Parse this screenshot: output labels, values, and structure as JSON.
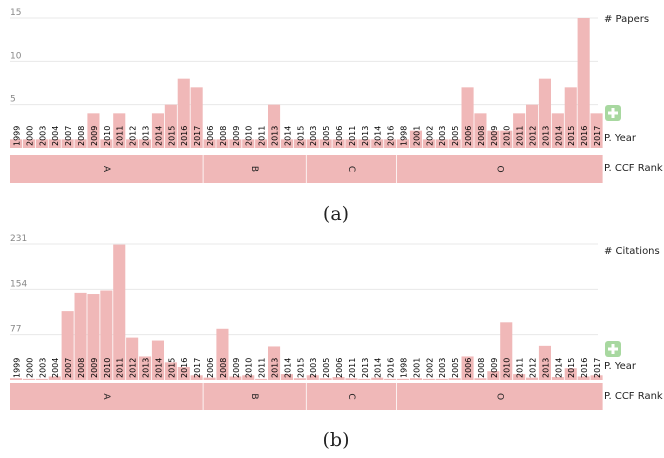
{
  "chart_data": [
    {
      "type": "bar",
      "panel_label": "(a)",
      "measure_label": "# Papers",
      "year_row_label": "P. Year",
      "rank_row_label": "P. CCF Rank",
      "yticks": [
        5,
        10,
        15
      ],
      "ylim": [
        0,
        15
      ],
      "colors": {
        "bar": "#f0b8b8",
        "band": "#f0b8b8",
        "grid": "#e8e8e8",
        "plus": "#a8d8a0"
      },
      "groups": [
        {
          "rank": "A",
          "years": [
            "1999",
            "2000",
            "2003",
            "2004",
            "2007",
            "2008",
            "2009",
            "2010",
            "2011",
            "2012",
            "2013",
            "2014",
            "2015",
            "2016",
            "2017"
          ],
          "values": [
            1,
            1,
            1,
            1,
            1,
            1,
            4,
            1,
            4,
            1,
            1,
            4,
            5,
            8,
            7
          ]
        },
        {
          "rank": "B",
          "years": [
            "2006",
            "2008",
            "2009",
            "2010",
            "2011",
            "2013",
            "2014",
            "2015"
          ],
          "values": [
            1,
            1,
            1,
            1,
            1,
            5,
            1,
            1
          ]
        },
        {
          "rank": "C",
          "years": [
            "2003",
            "2005",
            "2006",
            "2011",
            "2013",
            "2014",
            "2016"
          ],
          "values": [
            1,
            1,
            1,
            1,
            1,
            1,
            1
          ]
        },
        {
          "rank": "O",
          "years": [
            "1998",
            "2001",
            "2002",
            "2003",
            "2005",
            "2006",
            "2008",
            "2009",
            "2010",
            "2011",
            "2012",
            "2013",
            "2014",
            "2015",
            "2016",
            "2017"
          ],
          "values": [
            1,
            2,
            1,
            1,
            1,
            7,
            4,
            2,
            2,
            4,
            5,
            8,
            4,
            7,
            15,
            4
          ]
        }
      ]
    },
    {
      "type": "bar",
      "panel_label": "(b)",
      "measure_label": "# Citations",
      "year_row_label": "P. Year",
      "rank_row_label": "P. CCF Rank",
      "yticks": [
        77,
        154,
        231
      ],
      "ylim": [
        0,
        231
      ],
      "colors": {
        "bar": "#f0b8b8",
        "band": "#f0b8b8",
        "grid": "#e8e8e8",
        "plus": "#a8d8a0"
      },
      "groups": [
        {
          "rank": "A",
          "years": [
            "1999",
            "2000",
            "2003",
            "2004",
            "2007",
            "2008",
            "2009",
            "2010",
            "2011",
            "2012",
            "2013",
            "2014",
            "2015",
            "2016",
            "2017"
          ],
          "values": [
            3,
            2,
            2,
            6,
            117,
            148,
            146,
            152,
            230,
            72,
            40,
            67,
            30,
            22,
            8
          ]
        },
        {
          "rank": "B",
          "years": [
            "2006",
            "2008",
            "2009",
            "2010",
            "2011",
            "2013",
            "2014",
            "2015"
          ],
          "values": [
            4,
            87,
            6,
            8,
            2,
            57,
            10,
            3
          ]
        },
        {
          "rank": "C",
          "years": [
            "2003",
            "2005",
            "2006",
            "2011",
            "2013",
            "2014",
            "2016"
          ],
          "values": [
            8,
            3,
            5,
            3,
            2,
            4,
            2
          ]
        },
        {
          "rank": "O",
          "years": [
            "1998",
            "2001",
            "2002",
            "2003",
            "2005",
            "2006",
            "2008",
            "2009",
            "2010",
            "2011",
            "2012",
            "2013",
            "2014",
            "2015",
            "2016",
            "2017"
          ],
          "values": [
            2,
            3,
            2,
            2,
            3,
            40,
            3,
            15,
            98,
            10,
            4,
            58,
            5,
            20,
            6,
            8
          ]
        }
      ]
    }
  ]
}
